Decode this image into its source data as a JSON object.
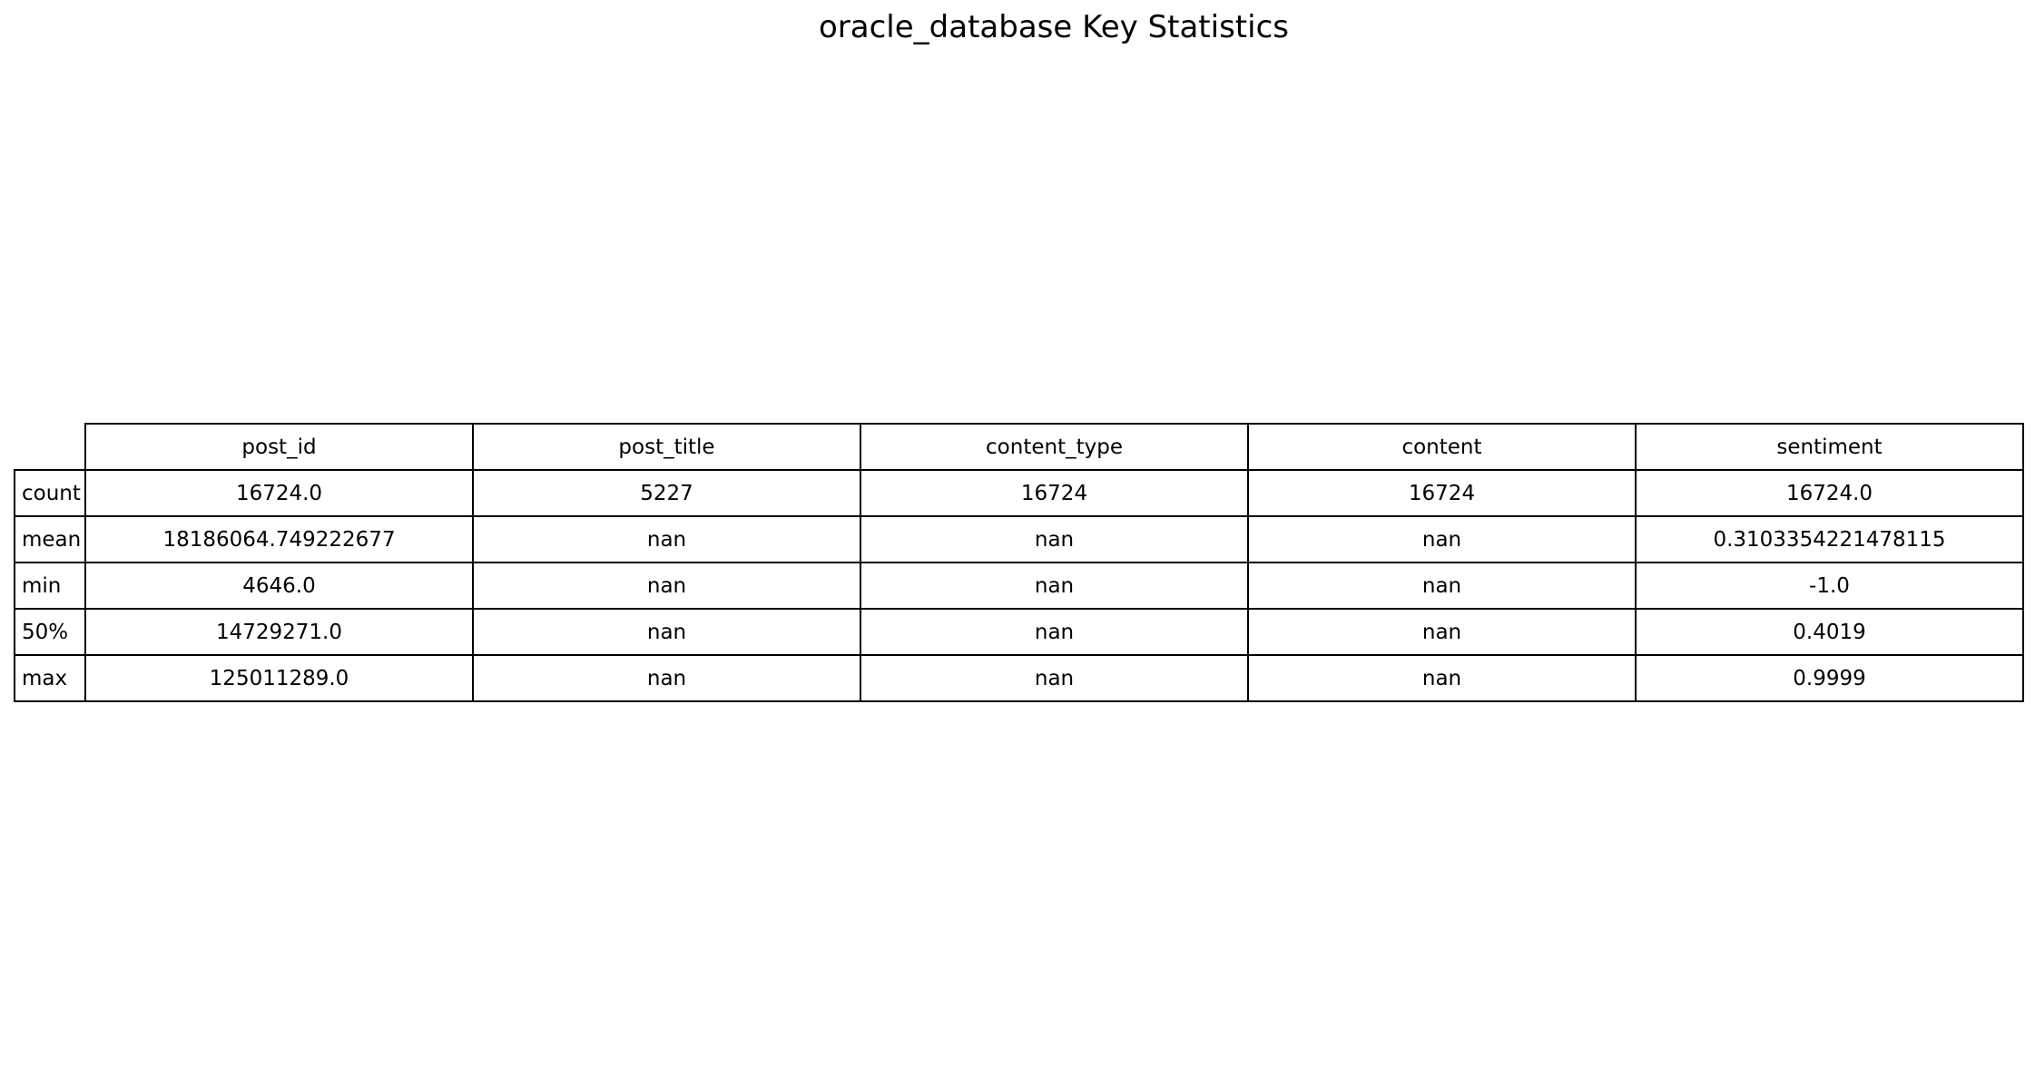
{
  "chart_data": {
    "type": "table",
    "title": "oracle_database Key Statistics",
    "columns": [
      "post_id",
      "post_title",
      "content_type",
      "content",
      "sentiment"
    ],
    "rows": [
      {
        "label": "count",
        "values": [
          "16724.0",
          "5227",
          "16724",
          "16724",
          "16724.0"
        ]
      },
      {
        "label": "mean",
        "values": [
          "18186064.749222677",
          "nan",
          "nan",
          "nan",
          "0.3103354221478115"
        ]
      },
      {
        "label": "min",
        "values": [
          "4646.0",
          "nan",
          "nan",
          "nan",
          "-1.0"
        ]
      },
      {
        "label": "50%",
        "values": [
          "14729271.0",
          "nan",
          "nan",
          "nan",
          "0.4019"
        ]
      },
      {
        "label": "max",
        "values": [
          "125011289.0",
          "nan",
          "nan",
          "nan",
          "0.9999"
        ]
      }
    ]
  }
}
